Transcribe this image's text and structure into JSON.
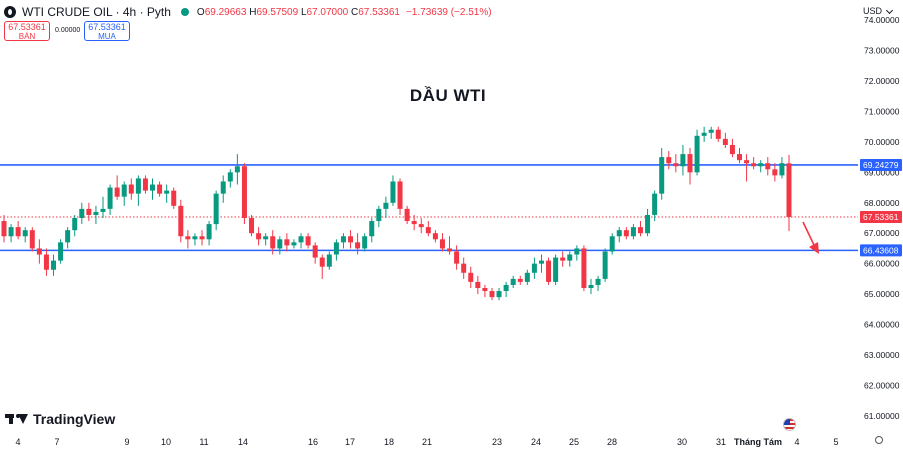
{
  "legend": {
    "symbol": "WTI CRUDE OIL · 4h · Pyth",
    "open_label": "O",
    "open": "69.29663",
    "high_label": "H",
    "high": "69.57509",
    "low_label": "L",
    "low": "67.07000",
    "close_label": "C",
    "close": "67.53361",
    "change": "−1.73639 (−2.51%)"
  },
  "trade": {
    "sell_price": "67.53361",
    "sell_label": "BÁN",
    "spread": "0.00000",
    "buy_price": "67.53361",
    "buy_label": "MUA"
  },
  "currency": "USD",
  "watermark": "TradingView",
  "colors": {
    "up": "#089981",
    "down": "#f23645",
    "level": "#2962ff",
    "price_line": "#f23645"
  },
  "chart_data": {
    "type": "candlestick",
    "title": "DẦU WTI",
    "y_ticks": [
      "74.00000",
      "73.00000",
      "72.00000",
      "71.00000",
      "70.00000",
      "69.00000",
      "68.00000",
      "67.00000",
      "66.00000",
      "65.00000",
      "64.00000",
      "63.00000",
      "62.00000",
      "61.00000"
    ],
    "ylim": [
      60.6,
      74.4
    ],
    "x_ticks": [
      "4",
      "7",
      "9",
      "10",
      "11",
      "14",
      "16",
      "17",
      "18",
      "21",
      "23",
      "24",
      "25",
      "28",
      "30",
      "31",
      "Tháng Tám",
      "4",
      "5"
    ],
    "horizontal_levels": [
      {
        "value": 69.24279,
        "label": "69.24279"
      },
      {
        "value": 66.43608,
        "label": "66.43608"
      }
    ],
    "current_price": {
      "value": 67.53361,
      "label": "67.53361"
    },
    "candles": [
      {
        "o": 67.4,
        "h": 67.6,
        "l": 66.7,
        "c": 66.9
      },
      {
        "o": 66.9,
        "h": 67.3,
        "l": 66.7,
        "c": 67.2
      },
      {
        "o": 67.2,
        "h": 67.4,
        "l": 66.8,
        "c": 66.9
      },
      {
        "o": 66.9,
        "h": 67.2,
        "l": 66.7,
        "c": 67.1
      },
      {
        "o": 67.1,
        "h": 67.2,
        "l": 66.4,
        "c": 66.5
      },
      {
        "o": 66.5,
        "h": 66.8,
        "l": 66.0,
        "c": 66.3
      },
      {
        "o": 66.3,
        "h": 66.5,
        "l": 65.6,
        "c": 65.8
      },
      {
        "o": 65.8,
        "h": 66.3,
        "l": 65.6,
        "c": 66.1
      },
      {
        "o": 66.1,
        "h": 66.8,
        "l": 66.0,
        "c": 66.7
      },
      {
        "o": 66.7,
        "h": 67.2,
        "l": 66.5,
        "c": 67.1
      },
      {
        "o": 67.1,
        "h": 67.6,
        "l": 66.9,
        "c": 67.5
      },
      {
        "o": 67.5,
        "h": 68.0,
        "l": 67.3,
        "c": 67.8
      },
      {
        "o": 67.8,
        "h": 68.0,
        "l": 67.4,
        "c": 67.6
      },
      {
        "o": 67.6,
        "h": 67.9,
        "l": 67.3,
        "c": 67.7
      },
      {
        "o": 67.7,
        "h": 68.2,
        "l": 67.5,
        "c": 67.8
      },
      {
        "o": 67.8,
        "h": 68.6,
        "l": 67.6,
        "c": 68.5
      },
      {
        "o": 68.5,
        "h": 68.9,
        "l": 68.1,
        "c": 68.2
      },
      {
        "o": 68.2,
        "h": 68.7,
        "l": 67.9,
        "c": 68.6
      },
      {
        "o": 68.6,
        "h": 68.8,
        "l": 68.1,
        "c": 68.3
      },
      {
        "o": 68.3,
        "h": 68.9,
        "l": 67.9,
        "c": 68.8
      },
      {
        "o": 68.8,
        "h": 68.9,
        "l": 68.3,
        "c": 68.4
      },
      {
        "o": 68.4,
        "h": 68.8,
        "l": 68.1,
        "c": 68.6
      },
      {
        "o": 68.6,
        "h": 68.7,
        "l": 68.2,
        "c": 68.3
      },
      {
        "o": 68.3,
        "h": 68.6,
        "l": 68.0,
        "c": 68.4
      },
      {
        "o": 68.4,
        "h": 68.5,
        "l": 67.8,
        "c": 67.9
      },
      {
        "o": 67.9,
        "h": 68.1,
        "l": 66.7,
        "c": 66.9
      },
      {
        "o": 66.9,
        "h": 67.1,
        "l": 66.5,
        "c": 66.8
      },
      {
        "o": 66.8,
        "h": 67.0,
        "l": 66.6,
        "c": 66.9
      },
      {
        "o": 66.9,
        "h": 67.1,
        "l": 66.6,
        "c": 66.8
      },
      {
        "o": 66.8,
        "h": 67.4,
        "l": 66.6,
        "c": 67.3
      },
      {
        "o": 67.3,
        "h": 68.4,
        "l": 67.1,
        "c": 68.3
      },
      {
        "o": 68.3,
        "h": 68.9,
        "l": 68.0,
        "c": 68.7
      },
      {
        "o": 68.7,
        "h": 69.1,
        "l": 68.5,
        "c": 69.0
      },
      {
        "o": 69.0,
        "h": 69.6,
        "l": 68.6,
        "c": 69.2
      },
      {
        "o": 69.2,
        "h": 69.3,
        "l": 67.3,
        "c": 67.5
      },
      {
        "o": 67.5,
        "h": 67.6,
        "l": 66.9,
        "c": 67.0
      },
      {
        "o": 67.0,
        "h": 67.2,
        "l": 66.6,
        "c": 66.8
      },
      {
        "o": 66.8,
        "h": 67.0,
        "l": 66.6,
        "c": 66.9
      },
      {
        "o": 66.9,
        "h": 67.1,
        "l": 66.3,
        "c": 66.5
      },
      {
        "o": 66.5,
        "h": 66.9,
        "l": 66.3,
        "c": 66.8
      },
      {
        "o": 66.8,
        "h": 67.0,
        "l": 66.4,
        "c": 66.6
      },
      {
        "o": 66.6,
        "h": 66.8,
        "l": 66.5,
        "c": 66.7
      },
      {
        "o": 66.7,
        "h": 67.0,
        "l": 66.5,
        "c": 66.9
      },
      {
        "o": 66.9,
        "h": 67.0,
        "l": 66.5,
        "c": 66.6
      },
      {
        "o": 66.6,
        "h": 66.7,
        "l": 66.0,
        "c": 66.2
      },
      {
        "o": 66.2,
        "h": 66.3,
        "l": 65.5,
        "c": 65.9
      },
      {
        "o": 65.9,
        "h": 66.4,
        "l": 65.8,
        "c": 66.3
      },
      {
        "o": 66.3,
        "h": 66.8,
        "l": 66.1,
        "c": 66.7
      },
      {
        "o": 66.7,
        "h": 67.0,
        "l": 66.5,
        "c": 66.9
      },
      {
        "o": 66.9,
        "h": 67.1,
        "l": 66.5,
        "c": 66.7
      },
      {
        "o": 66.7,
        "h": 67.0,
        "l": 66.3,
        "c": 66.5
      },
      {
        "o": 66.5,
        "h": 67.0,
        "l": 66.4,
        "c": 66.9
      },
      {
        "o": 66.9,
        "h": 67.5,
        "l": 66.7,
        "c": 67.4
      },
      {
        "o": 67.4,
        "h": 67.9,
        "l": 67.2,
        "c": 67.8
      },
      {
        "o": 67.8,
        "h": 68.2,
        "l": 67.5,
        "c": 68.0
      },
      {
        "o": 68.0,
        "h": 68.9,
        "l": 67.9,
        "c": 68.7
      },
      {
        "o": 68.7,
        "h": 68.8,
        "l": 67.6,
        "c": 67.8
      },
      {
        "o": 67.8,
        "h": 67.9,
        "l": 67.3,
        "c": 67.4
      },
      {
        "o": 67.4,
        "h": 67.6,
        "l": 67.1,
        "c": 67.3
      },
      {
        "o": 67.3,
        "h": 67.5,
        "l": 67.0,
        "c": 67.2
      },
      {
        "o": 67.2,
        "h": 67.4,
        "l": 66.9,
        "c": 67.0
      },
      {
        "o": 67.0,
        "h": 67.1,
        "l": 66.7,
        "c": 66.8
      },
      {
        "o": 66.8,
        "h": 67.0,
        "l": 66.4,
        "c": 66.5
      },
      {
        "o": 66.5,
        "h": 66.9,
        "l": 66.3,
        "c": 66.4
      },
      {
        "o": 66.4,
        "h": 66.6,
        "l": 65.8,
        "c": 66.0
      },
      {
        "o": 66.0,
        "h": 66.2,
        "l": 65.5,
        "c": 65.7
      },
      {
        "o": 65.7,
        "h": 65.9,
        "l": 65.2,
        "c": 65.4
      },
      {
        "o": 65.4,
        "h": 65.6,
        "l": 65.0,
        "c": 65.2
      },
      {
        "o": 65.2,
        "h": 65.3,
        "l": 64.9,
        "c": 65.1
      },
      {
        "o": 65.1,
        "h": 65.2,
        "l": 64.8,
        "c": 64.9
      },
      {
        "o": 64.9,
        "h": 65.2,
        "l": 64.8,
        "c": 65.1
      },
      {
        "o": 65.1,
        "h": 65.4,
        "l": 64.9,
        "c": 65.3
      },
      {
        "o": 65.3,
        "h": 65.6,
        "l": 65.2,
        "c": 65.5
      },
      {
        "o": 65.5,
        "h": 65.6,
        "l": 65.3,
        "c": 65.4
      },
      {
        "o": 65.4,
        "h": 65.8,
        "l": 65.3,
        "c": 65.7
      },
      {
        "o": 65.7,
        "h": 66.2,
        "l": 65.5,
        "c": 66.0
      },
      {
        "o": 66.0,
        "h": 66.3,
        "l": 65.7,
        "c": 66.1
      },
      {
        "o": 66.1,
        "h": 66.2,
        "l": 65.3,
        "c": 65.4
      },
      {
        "o": 65.4,
        "h": 66.3,
        "l": 65.3,
        "c": 66.2
      },
      {
        "o": 66.2,
        "h": 66.4,
        "l": 65.9,
        "c": 66.1
      },
      {
        "o": 66.1,
        "h": 66.4,
        "l": 65.9,
        "c": 66.3
      },
      {
        "o": 66.3,
        "h": 66.6,
        "l": 66.1,
        "c": 66.5
      },
      {
        "o": 66.5,
        "h": 66.6,
        "l": 65.1,
        "c": 65.2
      },
      {
        "o": 65.2,
        "h": 65.5,
        "l": 65.0,
        "c": 65.3
      },
      {
        "o": 65.3,
        "h": 65.6,
        "l": 65.1,
        "c": 65.5
      },
      {
        "o": 65.5,
        "h": 66.5,
        "l": 65.4,
        "c": 66.4
      },
      {
        "o": 66.4,
        "h": 67.0,
        "l": 66.3,
        "c": 66.9
      },
      {
        "o": 66.9,
        "h": 67.2,
        "l": 66.7,
        "c": 67.1
      },
      {
        "o": 67.1,
        "h": 67.2,
        "l": 66.8,
        "c": 66.9
      },
      {
        "o": 66.9,
        "h": 67.3,
        "l": 66.8,
        "c": 67.2
      },
      {
        "o": 67.2,
        "h": 67.4,
        "l": 66.9,
        "c": 67.0
      },
      {
        "o": 67.0,
        "h": 67.8,
        "l": 66.9,
        "c": 67.6
      },
      {
        "o": 67.6,
        "h": 68.4,
        "l": 67.4,
        "c": 68.3
      },
      {
        "o": 68.3,
        "h": 69.8,
        "l": 68.1,
        "c": 69.5
      },
      {
        "o": 69.5,
        "h": 69.7,
        "l": 69.1,
        "c": 69.3
      },
      {
        "o": 69.3,
        "h": 69.6,
        "l": 69.0,
        "c": 69.2
      },
      {
        "o": 69.2,
        "h": 69.9,
        "l": 68.9,
        "c": 69.6
      },
      {
        "o": 69.6,
        "h": 69.8,
        "l": 68.6,
        "c": 69.0
      },
      {
        "o": 69.0,
        "h": 70.4,
        "l": 68.9,
        "c": 70.2
      },
      {
        "o": 70.2,
        "h": 70.5,
        "l": 70.0,
        "c": 70.3
      },
      {
        "o": 70.3,
        "h": 70.5,
        "l": 70.1,
        "c": 70.4
      },
      {
        "o": 70.4,
        "h": 70.5,
        "l": 70.0,
        "c": 70.1
      },
      {
        "o": 70.1,
        "h": 70.3,
        "l": 69.8,
        "c": 69.9
      },
      {
        "o": 69.9,
        "h": 70.1,
        "l": 69.5,
        "c": 69.6
      },
      {
        "o": 69.6,
        "h": 69.8,
        "l": 69.3,
        "c": 69.4
      },
      {
        "o": 69.4,
        "h": 69.6,
        "l": 68.7,
        "c": 69.3
      },
      {
        "o": 69.3,
        "h": 69.5,
        "l": 69.1,
        "c": 69.2
      },
      {
        "o": 69.2,
        "h": 69.4,
        "l": 69.0,
        "c": 69.3
      },
      {
        "o": 69.3,
        "h": 69.5,
        "l": 68.9,
        "c": 69.1
      },
      {
        "o": 69.1,
        "h": 69.3,
        "l": 68.7,
        "c": 68.9
      },
      {
        "o": 68.9,
        "h": 69.5,
        "l": 68.8,
        "c": 69.3
      },
      {
        "o": 69.29663,
        "h": 69.57509,
        "l": 67.07,
        "c": 67.53361
      }
    ]
  }
}
